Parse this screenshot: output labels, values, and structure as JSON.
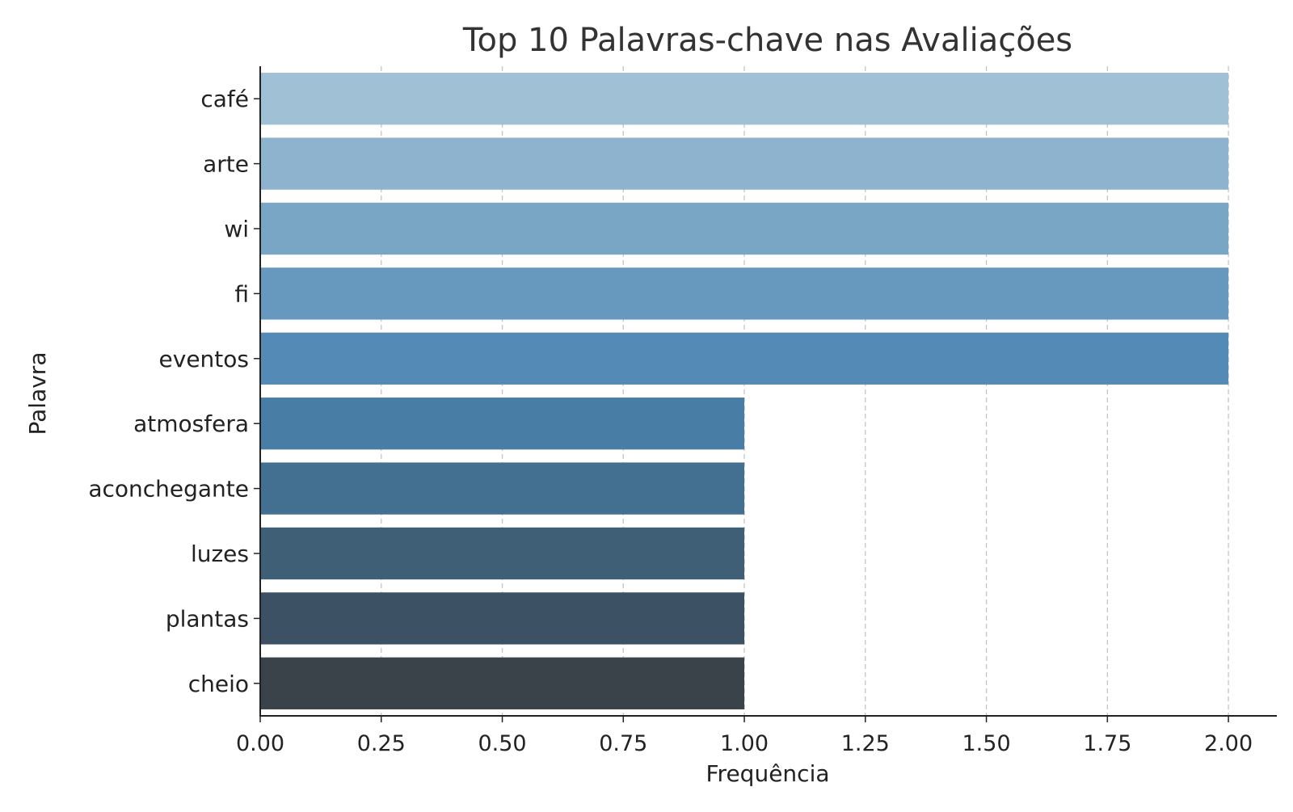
{
  "chart_data": {
    "type": "bar",
    "orientation": "horizontal",
    "title": "Top 10 Palavras-chave nas Avaliações",
    "xlabel": "Frequência",
    "ylabel": "Palavra",
    "categories": [
      "café",
      "arte",
      "wi",
      "fi",
      "eventos",
      "atmosfera",
      "aconchegante",
      "luzes",
      "plantas",
      "cheio"
    ],
    "values": [
      2,
      2,
      2,
      2,
      2,
      1,
      1,
      1,
      1,
      1
    ],
    "xlim": [
      0,
      2.1
    ],
    "xticks": [
      "0.00",
      "0.25",
      "0.50",
      "0.75",
      "1.00",
      "1.25",
      "1.50",
      "1.75",
      "2.00"
    ],
    "grid": "vertical dashed",
    "colors": [
      "#a0c0d6",
      "#8db3cf",
      "#7aa6c6",
      "#6799bf",
      "#548bb6",
      "#487ea6",
      "#437090",
      "#3f5f77",
      "#3c5164",
      "#394349"
    ]
  }
}
